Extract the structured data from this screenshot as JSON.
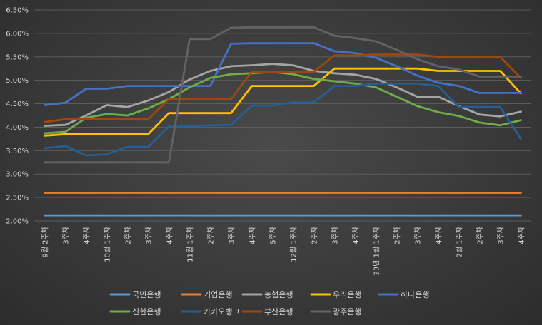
{
  "chart_data": {
    "type": "line",
    "title": "",
    "xlabel": "",
    "ylabel": "",
    "ylim": [
      2.0,
      6.5
    ],
    "y_ticks": [
      "2.00%",
      "2.50%",
      "3.00%",
      "3.50%",
      "4.00%",
      "4.50%",
      "5.00%",
      "5.50%",
      "6.00%",
      "6.50%"
    ],
    "grid": "horizontal",
    "legend_position": "bottom",
    "categories": [
      "9월 2주차",
      "3주차",
      "4주차",
      "10월 1주차",
      "2주차",
      "3주차",
      "4주차",
      "11월 1주차",
      "2주차",
      "3주차",
      "4주차",
      "5주차",
      "12월 1주차",
      "2주차",
      "3주차",
      "4주차",
      "23년 1월 1주차",
      "2주차",
      "3주차",
      "4주차",
      "2월 1주차",
      "2주차",
      "3주차",
      "4주차"
    ],
    "series": [
      {
        "name": "국민은행",
        "color": "#5b9bd5",
        "values": [
          2.12,
          2.12,
          2.12,
          2.12,
          2.12,
          2.12,
          2.12,
          2.12,
          2.12,
          2.12,
          2.12,
          2.12,
          2.12,
          2.12,
          2.12,
          2.12,
          2.12,
          2.12,
          2.12,
          2.12,
          2.12,
          2.12,
          2.12,
          2.12
        ]
      },
      {
        "name": "기업은행",
        "color": "#ed7d31",
        "values": [
          2.6,
          2.6,
          2.6,
          2.6,
          2.6,
          2.6,
          2.6,
          2.6,
          2.6,
          2.6,
          2.6,
          2.6,
          2.6,
          2.6,
          2.6,
          2.6,
          2.6,
          2.6,
          2.6,
          2.6,
          2.6,
          2.6,
          2.6,
          2.6
        ]
      },
      {
        "name": "농협은행",
        "color": "#a5a5a5",
        "values": [
          4.03,
          4.05,
          4.25,
          4.47,
          4.43,
          4.57,
          4.75,
          5.02,
          5.2,
          5.3,
          5.32,
          5.35,
          5.32,
          5.2,
          5.15,
          5.12,
          5.03,
          4.85,
          4.65,
          4.65,
          4.45,
          4.27,
          4.23,
          4.33
        ]
      },
      {
        "name": "우리은행",
        "color": "#ffc000",
        "values": [
          3.82,
          3.85,
          3.85,
          3.85,
          3.85,
          3.85,
          4.3,
          4.3,
          4.3,
          4.3,
          4.88,
          4.88,
          4.88,
          4.88,
          5.25,
          5.25,
          5.25,
          5.25,
          5.25,
          5.2,
          5.2,
          5.2,
          5.2,
          4.72
        ]
      },
      {
        "name": "하나은행",
        "color": "#4472c4",
        "values": [
          4.47,
          4.52,
          4.82,
          4.82,
          4.88,
          4.88,
          4.88,
          4.88,
          4.88,
          5.78,
          5.79,
          5.79,
          5.79,
          5.79,
          5.62,
          5.58,
          5.48,
          5.3,
          5.1,
          4.95,
          4.88,
          4.73,
          4.73,
          4.73
        ]
      },
      {
        "name": "신한은행",
        "color": "#70ad47",
        "values": [
          3.87,
          3.9,
          4.2,
          4.28,
          4.25,
          4.4,
          4.6,
          4.85,
          5.05,
          5.13,
          5.15,
          5.18,
          5.13,
          5.03,
          4.98,
          4.93,
          4.85,
          4.65,
          4.45,
          4.32,
          4.24,
          4.1,
          4.04,
          4.15
        ]
      },
      {
        "name": "카카오뱅크",
        "color": "#255e91",
        "values": [
          3.55,
          3.6,
          3.4,
          3.42,
          3.58,
          3.58,
          4.02,
          4.02,
          4.04,
          4.05,
          4.46,
          4.46,
          4.53,
          4.53,
          4.88,
          4.88,
          4.93,
          4.93,
          4.93,
          4.88,
          4.43,
          4.43,
          4.43,
          3.75
        ]
      },
      {
        "name": "부산은행",
        "color": "#9e480e",
        "values": [
          4.11,
          4.17,
          4.17,
          4.17,
          4.17,
          4.17,
          4.6,
          4.6,
          4.6,
          4.6,
          5.18,
          5.18,
          5.18,
          5.18,
          5.53,
          5.53,
          5.55,
          5.55,
          5.55,
          5.5,
          5.5,
          5.5,
          5.5,
          5.05
        ]
      },
      {
        "name": "광주은행",
        "color": "#636363",
        "values": [
          3.25,
          3.25,
          3.25,
          3.25,
          3.25,
          3.25,
          3.25,
          5.88,
          5.88,
          6.12,
          6.13,
          6.13,
          6.13,
          6.13,
          5.95,
          5.9,
          5.83,
          5.65,
          5.45,
          5.3,
          5.23,
          5.08,
          5.08,
          5.08
        ]
      }
    ]
  }
}
